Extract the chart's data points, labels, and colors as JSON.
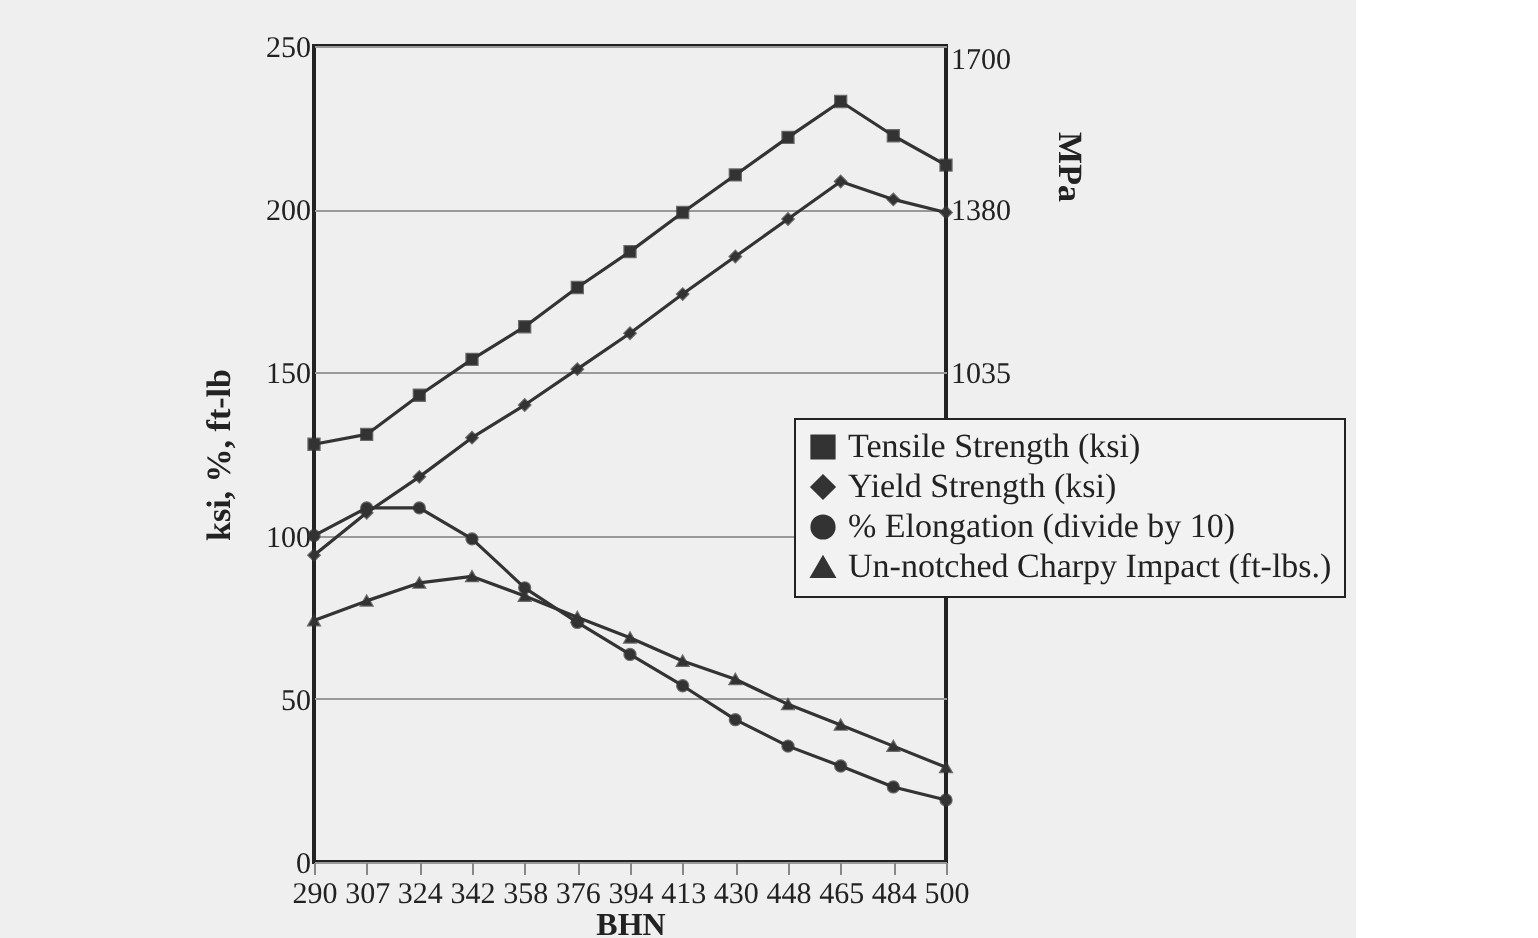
{
  "chart_data": {
    "type": "line",
    "categories": [
      "290",
      "307",
      "324",
      "342",
      "358",
      "376",
      "394",
      "413",
      "430",
      "448",
      "465",
      "484",
      "500"
    ],
    "xlabel": "BHN",
    "ylabel": "ksi, %, ft-lb",
    "y2label": "MPa",
    "ylim": [
      0,
      250
    ],
    "yticks": [
      0,
      50,
      100,
      150,
      200,
      250
    ],
    "y2lim": [
      0,
      1725
    ],
    "y2ticks": [
      1035,
      1380,
      1700
    ],
    "grid": "y",
    "legend": "right",
    "line_style": "solid",
    "series": [
      {
        "name": "Tensile Strength (ksi)",
        "color": "#333333",
        "marker": "square",
        "values": [
          128,
          131,
          143,
          154,
          164,
          176,
          187,
          199,
          210.5,
          222,
          233,
          222.5,
          213.5
        ]
      },
      {
        "name": "Yield Strength (ksi)",
        "color": "#333333",
        "marker": "diamond",
        "values": [
          94,
          107,
          118,
          130,
          140,
          151,
          162,
          174,
          185.5,
          197,
          208.5,
          203,
          199
        ]
      },
      {
        "name": "% Elongation (divide by 10)",
        "color": "#333333",
        "marker": "circle",
        "values": [
          100,
          108.5,
          108.5,
          99,
          84,
          73.4,
          63.6,
          54,
          43.6,
          35.5,
          29.4,
          23,
          19
        ]
      },
      {
        "name": "Un-notched Charpy Impact (ft-lbs.)",
        "color": "#333333",
        "marker": "triangle",
        "values": [
          74,
          80,
          85.5,
          87.5,
          81.5,
          75,
          68.7,
          61.6,
          56,
          48.3,
          42,
          35.5,
          29
        ]
      }
    ]
  }
}
